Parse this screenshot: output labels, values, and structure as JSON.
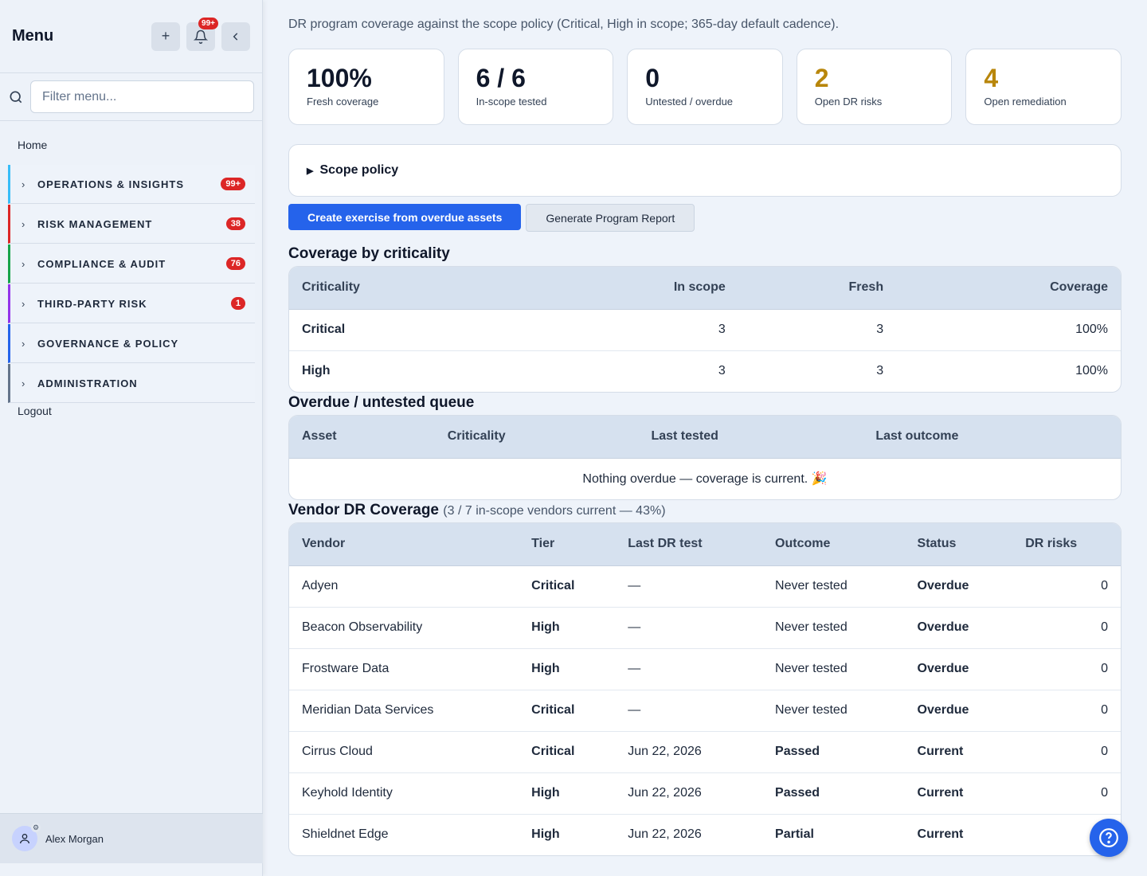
{
  "sidebar": {
    "title": "Menu",
    "notifications_badge": "99+",
    "filter_placeholder": "Filter menu...",
    "home": "Home",
    "logout": "Logout",
    "groups": [
      {
        "label": "OPERATIONS & INSIGHTS",
        "badge": "99+",
        "color": "#38bdf8"
      },
      {
        "label": "RISK MANAGEMENT",
        "badge": "38",
        "color": "#dc2626"
      },
      {
        "label": "COMPLIANCE & AUDIT",
        "badge": "76",
        "color": "#16a34a"
      },
      {
        "label": "THIRD-PARTY RISK",
        "badge": "1",
        "color": "#9333ea"
      },
      {
        "label": "GOVERNANCE & POLICY",
        "badge": "",
        "color": "#2563eb"
      },
      {
        "label": "ADMINISTRATION",
        "badge": "",
        "color": "#64748b"
      }
    ],
    "user": "Alex Morgan"
  },
  "main": {
    "intro": "DR program coverage against the scope policy (Critical, High in scope; 365-day default cadence).",
    "kpis": [
      {
        "value": "100%",
        "label": "Fresh coverage",
        "tone": "dark"
      },
      {
        "value": "6 / 6",
        "label": "In-scope tested",
        "tone": "dark"
      },
      {
        "value": "0",
        "label": "Untested / overdue",
        "tone": "dark"
      },
      {
        "value": "2",
        "label": "Open DR risks",
        "tone": "amber"
      },
      {
        "value": "4",
        "label": "Open remediation",
        "tone": "amber"
      }
    ],
    "scope_policy": "Scope policy",
    "actions": {
      "create": "Create exercise from overdue assets",
      "report": "Generate Program Report"
    },
    "coverage": {
      "title": "Coverage by criticality",
      "headers": [
        "Criticality",
        "In scope",
        "Fresh",
        "Coverage"
      ],
      "rows": [
        {
          "criticality": "Critical",
          "in_scope": "3",
          "fresh": "3",
          "coverage": "100%"
        },
        {
          "criticality": "High",
          "in_scope": "3",
          "fresh": "3",
          "coverage": "100%"
        }
      ]
    },
    "overdue": {
      "title": "Overdue / untested queue",
      "headers": [
        "Asset",
        "Criticality",
        "Last tested",
        "Last outcome"
      ],
      "empty": "Nothing overdue — coverage is current. 🎉"
    },
    "vendor": {
      "title": "Vendor DR Coverage",
      "subtitle": "(3 / 7 in-scope vendors current — 43%)",
      "headers": [
        "Vendor",
        "Tier",
        "Last DR test",
        "Outcome",
        "Status",
        "DR risks"
      ],
      "rows": [
        {
          "vendor": "Adyen",
          "tier": "Critical",
          "last": "—",
          "outcome": "Never tested",
          "status": "Overdue",
          "risks": "0"
        },
        {
          "vendor": "Beacon Observability",
          "tier": "High",
          "last": "—",
          "outcome": "Never tested",
          "status": "Overdue",
          "risks": "0"
        },
        {
          "vendor": "Frostware Data",
          "tier": "High",
          "last": "—",
          "outcome": "Never tested",
          "status": "Overdue",
          "risks": "0"
        },
        {
          "vendor": "Meridian Data Services",
          "tier": "Critical",
          "last": "—",
          "outcome": "Never tested",
          "status": "Overdue",
          "risks": "0"
        },
        {
          "vendor": "Cirrus Cloud",
          "tier": "Critical",
          "last": "Jun 22, 2026",
          "outcome": "Passed",
          "status": "Current",
          "risks": "0"
        },
        {
          "vendor": "Keyhold Identity",
          "tier": "High",
          "last": "Jun 22, 2026",
          "outcome": "Passed",
          "status": "Current",
          "risks": "0"
        },
        {
          "vendor": "Shieldnet Edge",
          "tier": "High",
          "last": "Jun 22, 2026",
          "outcome": "Partial",
          "status": "Current",
          "risks": ""
        }
      ]
    }
  }
}
